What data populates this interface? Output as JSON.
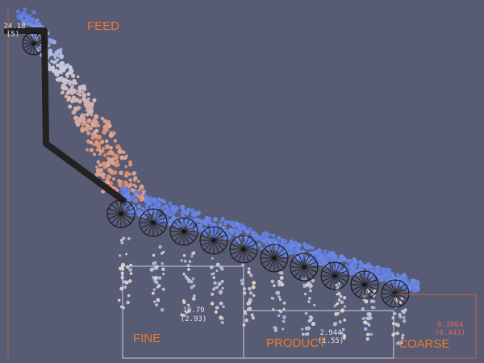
{
  "labels": {
    "feed": "FEED",
    "fine": "FINE",
    "product": "PRODUCT",
    "coarse": "COARSE"
  },
  "readouts": {
    "feed": {
      "value": "24.18",
      "sub": "(5)"
    },
    "fine": {
      "value": "10.79",
      "sub": "(2.93)"
    },
    "product": {
      "value": "2.944",
      "sub": "(1.55)"
    },
    "coarse": {
      "value": "0.3064",
      "sub": "(0.443)"
    }
  }
}
